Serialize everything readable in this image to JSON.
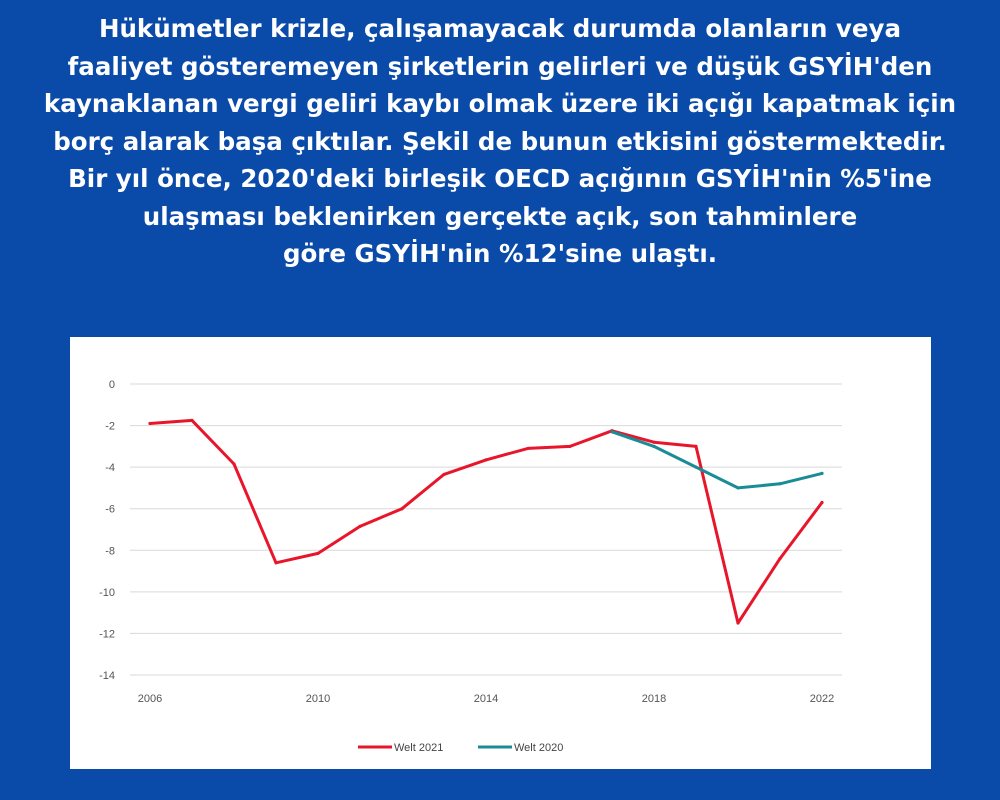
{
  "headline": {
    "lines": [
      "Hükümetler krizle, çalışamayacak durumda olanların veya",
      "faaliyet gösteremeyen şirketlerin gelirleri ve düşük GSYİH'den",
      "kaynaklanan vergi geliri kaybı olmak üzere iki açığı kapatmak için",
      "borç alarak başa çıktılar. Şekil de bunun etkisini göstermektedir.",
      "Bir yıl önce, 2020'deki birleşik OECD açığının GSYİH'nin %5'ine",
      "ulaşması beklenirken gerçekte açık, son tahminlere",
      "göre GSYİH'nin %12'sine ulaştı."
    ],
    "color": "#ffffff"
  },
  "background_color": "#0a4aa8",
  "chart_data": {
    "type": "line",
    "xlim": [
      2006,
      2022
    ],
    "ylim": [
      -14,
      0
    ],
    "x_ticks": [
      2006,
      2010,
      2014,
      2018,
      2022
    ],
    "y_ticks": [
      0,
      -2,
      -4,
      -6,
      -8,
      -10,
      -12,
      -14
    ],
    "grid": true,
    "legend_position": "bottom",
    "series": [
      {
        "name": "Welt 2021",
        "color": "#e8162a",
        "x": [
          2006,
          2007,
          2008,
          2009,
          2010,
          2011,
          2012,
          2013,
          2014,
          2015,
          2016,
          2017,
          2018,
          2019,
          2020,
          2021,
          2022
        ],
        "y": [
          -1.9,
          -1.75,
          -3.85,
          -8.6,
          -8.15,
          -6.85,
          -6.0,
          -4.35,
          -3.65,
          -3.1,
          -3.0,
          -2.25,
          -2.8,
          -3.0,
          -11.5,
          -8.4,
          -5.7
        ]
      },
      {
        "name": "Welt 2020",
        "color": "#1a8c96",
        "x": [
          2017,
          2018,
          2019,
          2020,
          2021,
          2022
        ],
        "y": [
          -2.3,
          -3.0,
          -4.0,
          -5.0,
          -4.8,
          -4.3
        ]
      }
    ]
  }
}
